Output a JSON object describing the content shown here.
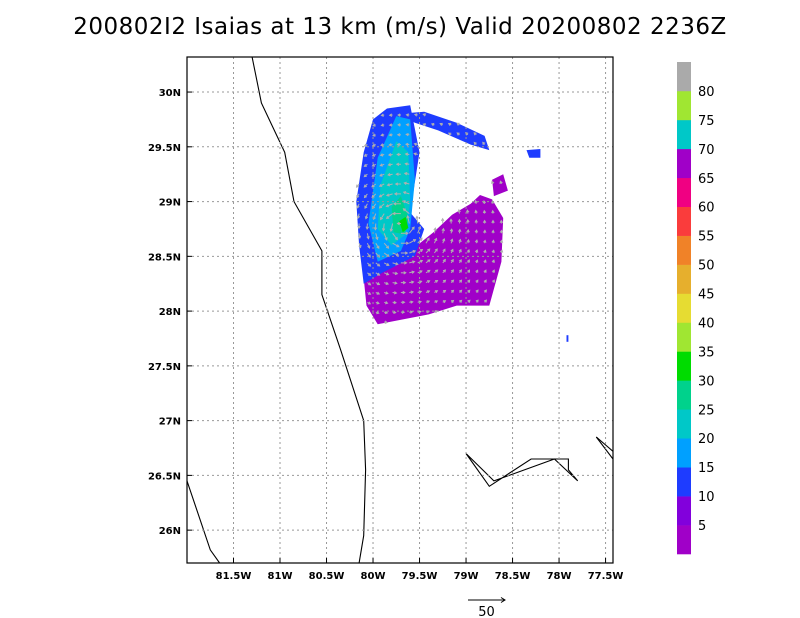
{
  "title": "200802I2 Isaias at 13 km (m/s) Valid 20200802 2236Z",
  "chart_data": {
    "type": "heatmap",
    "title": "200802I2 Isaias at 13 km (m/s) Valid 20200802 2236Z",
    "x_ticks": [
      "81.5W",
      "81W",
      "80.5W",
      "80W",
      "79.5W",
      "79W",
      "78.5W",
      "78W",
      "77.5W"
    ],
    "y_ticks": [
      "30N",
      "29.5N",
      "29N",
      "28.5N",
      "28N",
      "27.5N",
      "27N",
      "26.5N",
      "26N"
    ],
    "xlim": [
      -82.0,
      -77.42
    ],
    "ylim": [
      25.7,
      30.32
    ],
    "grid": true,
    "colorbar": {
      "labels": [
        "5",
        "10",
        "15",
        "20",
        "25",
        "30",
        "35",
        "40",
        "45",
        "50",
        "55",
        "60",
        "65",
        "70",
        "75",
        "80"
      ],
      "colors": [
        "#a000c8",
        "#8200dc",
        "#1e3cff",
        "#00a0ff",
        "#00c8c8",
        "#00d28c",
        "#00dc00",
        "#a0e632",
        "#e6dc32",
        "#e6af2d",
        "#f08228",
        "#fa3c3c",
        "#f00082",
        "#a000c8",
        "#00c8c8",
        "#a0e632",
        "#aaaaaa"
      ]
    },
    "vector_reference": {
      "label": "50",
      "value": 50
    },
    "wind_regions": [
      {
        "name": "purple-south",
        "color": "#a000c8",
        "value": 5,
        "polygon": [
          [
            -79.95,
            28.45
          ],
          [
            -79.6,
            28.55
          ],
          [
            -79.35,
            28.72
          ],
          [
            -79.15,
            28.88
          ],
          [
            -78.95,
            28.98
          ],
          [
            -78.85,
            29.06
          ],
          [
            -78.72,
            29.02
          ],
          [
            -78.6,
            28.85
          ],
          [
            -78.62,
            28.45
          ],
          [
            -78.75,
            28.05
          ],
          [
            -79.1,
            28.05
          ],
          [
            -79.4,
            27.97
          ],
          [
            -79.95,
            27.88
          ],
          [
            -80.07,
            28.05
          ],
          [
            -80.1,
            28.3
          ]
        ]
      },
      {
        "name": "blue-west",
        "color": "#1e3cff",
        "value": 10,
        "polygon": [
          [
            -80.0,
            29.75
          ],
          [
            -79.85,
            29.85
          ],
          [
            -79.6,
            29.88
          ],
          [
            -79.5,
            29.45
          ],
          [
            -79.6,
            28.9
          ],
          [
            -79.45,
            28.75
          ],
          [
            -79.55,
            28.5
          ],
          [
            -79.9,
            28.35
          ],
          [
            -80.1,
            28.25
          ],
          [
            -80.15,
            28.6
          ],
          [
            -80.18,
            29.0
          ],
          [
            -80.1,
            29.45
          ]
        ]
      },
      {
        "name": "blue-north-arc",
        "color": "#1e3cff",
        "value": 10,
        "polygon": [
          [
            -79.75,
            29.8
          ],
          [
            -79.45,
            29.82
          ],
          [
            -79.1,
            29.72
          ],
          [
            -78.8,
            29.6
          ],
          [
            -78.75,
            29.47
          ],
          [
            -78.95,
            29.52
          ],
          [
            -79.3,
            29.65
          ],
          [
            -79.55,
            29.72
          ]
        ]
      },
      {
        "name": "lightblue-core",
        "color": "#00a0ff",
        "value": 15,
        "polygon": [
          [
            -79.95,
            29.4
          ],
          [
            -79.75,
            29.78
          ],
          [
            -79.6,
            29.75
          ],
          [
            -79.55,
            29.2
          ],
          [
            -79.6,
            28.75
          ],
          [
            -79.7,
            28.55
          ],
          [
            -79.95,
            28.45
          ],
          [
            -80.05,
            28.8
          ]
        ]
      },
      {
        "name": "teal-core",
        "color": "#00c8c8",
        "value": 20,
        "polygon": [
          [
            -79.92,
            29.15
          ],
          [
            -79.75,
            29.55
          ],
          [
            -79.62,
            29.45
          ],
          [
            -79.6,
            29.0
          ],
          [
            -79.65,
            28.7
          ],
          [
            -79.8,
            28.6
          ],
          [
            -79.95,
            28.75
          ]
        ]
      },
      {
        "name": "green-core",
        "color": "#00d28c",
        "value": 25,
        "polygon": [
          [
            -79.8,
            28.95
          ],
          [
            -79.7,
            29.05
          ],
          [
            -79.62,
            28.85
          ],
          [
            -79.66,
            28.7
          ],
          [
            -79.78,
            28.72
          ]
        ]
      },
      {
        "name": "green-max",
        "color": "#00dc00",
        "value": 30,
        "polygon": [
          [
            -79.72,
            28.82
          ],
          [
            -79.65,
            28.86
          ],
          [
            -79.62,
            28.76
          ],
          [
            -79.68,
            28.72
          ]
        ]
      },
      {
        "name": "blue-east-patch",
        "color": "#1e3cff",
        "value": 10,
        "polygon": [
          [
            -78.35,
            29.47
          ],
          [
            -78.2,
            29.48
          ],
          [
            -78.2,
            29.4
          ],
          [
            -78.32,
            29.4
          ]
        ]
      },
      {
        "name": "purple-east-streak",
        "color": "#a000c8",
        "value": 5,
        "polygon": [
          [
            -78.72,
            29.2
          ],
          [
            -78.6,
            29.25
          ],
          [
            -78.55,
            29.1
          ],
          [
            -78.7,
            29.05
          ]
        ]
      },
      {
        "name": "blue-isolated",
        "color": "#1e3cff",
        "value": 10,
        "polygon": [
          [
            -77.92,
            27.78
          ],
          [
            -77.9,
            27.78
          ],
          [
            -77.9,
            27.72
          ],
          [
            -77.92,
            27.72
          ]
        ]
      }
    ],
    "coastlines": [
      [
        [
          -81.3,
          30.32
        ],
        [
          -81.2,
          29.9
        ],
        [
          -80.95,
          29.45
        ],
        [
          -80.85,
          29.0
        ],
        [
          -80.55,
          28.55
        ],
        [
          -80.55,
          28.15
        ],
        [
          -80.35,
          27.65
        ],
        [
          -80.1,
          27.0
        ],
        [
          -80.08,
          26.55
        ],
        [
          -80.1,
          25.95
        ],
        [
          -80.15,
          25.7
        ]
      ],
      [
        [
          -82.0,
          26.45
        ],
        [
          -81.75,
          25.82
        ],
        [
          -81.65,
          25.7
        ]
      ],
      [
        [
          -79.0,
          26.7
        ],
        [
          -78.7,
          26.45
        ],
        [
          -78.05,
          26.65
        ],
        [
          -77.8,
          26.45
        ],
        [
          -77.9,
          26.55
        ],
        [
          -77.9,
          26.65
        ],
        [
          -78.3,
          26.65
        ],
        [
          -78.75,
          26.4
        ],
        [
          -79.0,
          26.7
        ]
      ],
      [
        [
          -77.6,
          26.85
        ],
        [
          -77.42,
          26.72
        ]
      ],
      [
        [
          -77.6,
          26.85
        ],
        [
          -77.42,
          26.65
        ]
      ]
    ]
  }
}
